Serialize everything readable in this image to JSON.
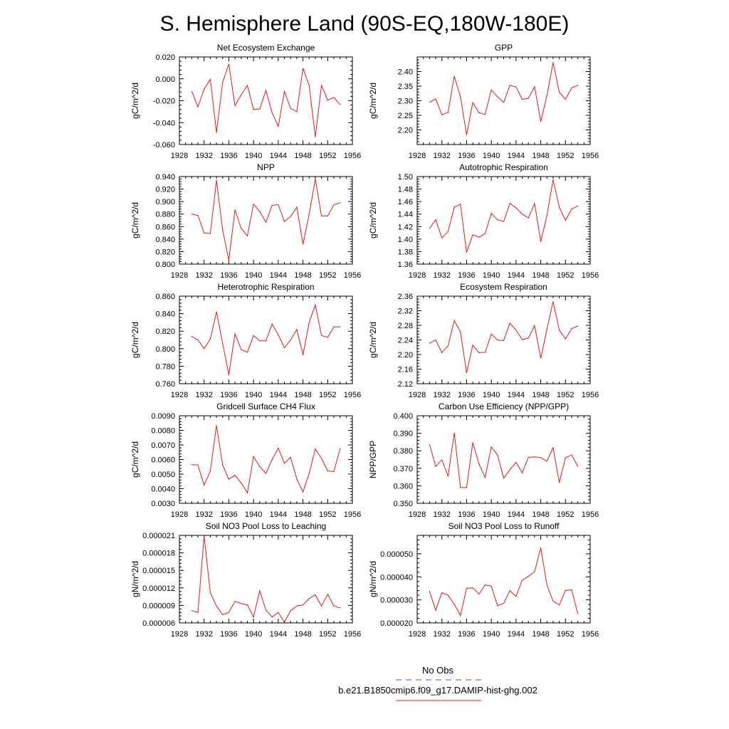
{
  "figure": {
    "title": "S. Hemisphere Land (90S-EQ,180W-180E)",
    "legend": [
      {
        "label": "No Obs",
        "color": "#4b4bd8",
        "dash": true
      },
      {
        "label": "b.e21.B1850cmip6.f09_g17.DAMIP-hist-ghg.002",
        "color": "#e81818",
        "dash": false
      }
    ]
  },
  "chart_data": [
    {
      "type": "line",
      "title": "Net Ecosystem Exchange",
      "ylabel": "gC/m^2/d",
      "xlim": [
        1928,
        1956
      ],
      "xticks": [
        "1928",
        "1932",
        "1936",
        "1940",
        "1944",
        "1948",
        "1952",
        "1956"
      ],
      "ylim": [
        -0.06,
        0.02
      ],
      "yticks": [
        -0.06,
        -0.04,
        -0.02,
        0.0,
        0.02
      ],
      "ytick_labels": [
        "-0.060",
        "-0.040",
        "-0.020",
        "0.000",
        "0.020"
      ],
      "series": [
        {
          "color": "#e81818",
          "x": [
            1930,
            1931,
            1932,
            1933,
            1934,
            1935,
            1936,
            1937,
            1938,
            1939,
            1940,
            1941,
            1942,
            1943,
            1944,
            1945,
            1946,
            1947,
            1948,
            1949,
            1950,
            1951,
            1952,
            1953,
            1954
          ],
          "y": [
            -0.0115,
            -0.0255,
            -0.0095,
            -0.0005,
            -0.049,
            -0.003,
            0.0135,
            -0.0245,
            -0.0145,
            -0.006,
            -0.028,
            -0.0275,
            -0.0105,
            -0.031,
            -0.0435,
            -0.0115,
            -0.027,
            -0.03,
            0.0095,
            -0.006,
            -0.053,
            -0.006,
            -0.0195,
            -0.017,
            -0.0235
          ]
        }
      ]
    },
    {
      "type": "line",
      "title": "GPP",
      "ylabel": "gC/m^2/d",
      "xlim": [
        1928,
        1956
      ],
      "xticks": [
        "1928",
        "1932",
        "1936",
        "1940",
        "1944",
        "1948",
        "1952",
        "1956"
      ],
      "ylim": [
        2.15,
        2.45
      ],
      "yticks": [
        2.2,
        2.25,
        2.3,
        2.35,
        2.4
      ],
      "ytick_labels": [
        "2.20",
        "2.25",
        "2.30",
        "2.35",
        "2.40"
      ],
      "series": [
        {
          "color": "#e81818",
          "x": [
            1930,
            1931,
            1932,
            1933,
            1934,
            1935,
            1936,
            1937,
            1938,
            1939,
            1940,
            1941,
            1942,
            1943,
            1944,
            1945,
            1946,
            1947,
            1948,
            1949,
            1950,
            1951,
            1952,
            1953,
            1954
          ],
          "y": [
            2.295,
            2.306,
            2.252,
            2.26,
            2.384,
            2.314,
            2.183,
            2.294,
            2.259,
            2.253,
            2.337,
            2.314,
            2.294,
            2.353,
            2.347,
            2.305,
            2.308,
            2.348,
            2.229,
            2.318,
            2.431,
            2.329,
            2.305,
            2.344,
            2.353
          ]
        }
      ]
    },
    {
      "type": "line",
      "title": "NPP",
      "ylabel": "gC/m^2/d",
      "xlim": [
        1928,
        1956
      ],
      "xticks": [
        "1928",
        "1932",
        "1936",
        "1940",
        "1944",
        "1948",
        "1952",
        "1956"
      ],
      "ylim": [
        0.8,
        0.94
      ],
      "yticks": [
        0.8,
        0.82,
        0.84,
        0.86,
        0.88,
        0.9,
        0.92,
        0.94
      ],
      "ytick_labels": [
        "0.800",
        "0.820",
        "0.840",
        "0.860",
        "0.880",
        "0.900",
        "0.920",
        "0.940"
      ],
      "series": [
        {
          "color": "#e81818",
          "x": [
            1930,
            1931,
            1932,
            1933,
            1934,
            1935,
            1936,
            1937,
            1938,
            1939,
            1940,
            1941,
            1942,
            1943,
            1944,
            1945,
            1946,
            1947,
            1948,
            1949,
            1950,
            1951,
            1952,
            1953,
            1954
          ],
          "y": [
            0.88,
            0.878,
            0.85,
            0.849,
            0.934,
            0.854,
            0.806,
            0.887,
            0.857,
            0.845,
            0.896,
            0.884,
            0.867,
            0.894,
            0.895,
            0.868,
            0.876,
            0.891,
            0.832,
            0.88,
            0.936,
            0.877,
            0.877,
            0.895,
            0.898
          ]
        }
      ]
    },
    {
      "type": "line",
      "title": "Autotrophic Respiration",
      "ylabel": "gC/m^2/d",
      "xlim": [
        1928,
        1956
      ],
      "xticks": [
        "1928",
        "1932",
        "1936",
        "1940",
        "1944",
        "1948",
        "1952",
        "1956"
      ],
      "ylim": [
        1.36,
        1.5
      ],
      "yticks": [
        1.36,
        1.38,
        1.4,
        1.42,
        1.44,
        1.46,
        1.48,
        1.5
      ],
      "ytick_labels": [
        "1.36",
        "1.38",
        "1.40",
        "1.42",
        "1.44",
        "1.46",
        "1.48",
        "1.50"
      ],
      "series": [
        {
          "color": "#e81818",
          "x": [
            1930,
            1931,
            1932,
            1933,
            1934,
            1935,
            1936,
            1937,
            1938,
            1939,
            1940,
            1941,
            1942,
            1943,
            1944,
            1945,
            1946,
            1947,
            1948,
            1949,
            1950,
            1951,
            1952,
            1953,
            1954
          ],
          "y": [
            1.417,
            1.431,
            1.402,
            1.412,
            1.451,
            1.456,
            1.379,
            1.407,
            1.403,
            1.409,
            1.441,
            1.431,
            1.428,
            1.457,
            1.45,
            1.44,
            1.434,
            1.457,
            1.396,
            1.438,
            1.495,
            1.451,
            1.43,
            1.448,
            1.453
          ]
        }
      ]
    },
    {
      "type": "line",
      "title": "Heterotrophic Respiration",
      "ylabel": "gC/m^2/d",
      "xlim": [
        1928,
        1956
      ],
      "xticks": [
        "1928",
        "1932",
        "1936",
        "1940",
        "1944",
        "1948",
        "1952",
        "1956"
      ],
      "ylim": [
        0.76,
        0.86
      ],
      "yticks": [
        0.76,
        0.78,
        0.8,
        0.82,
        0.84,
        0.86
      ],
      "ytick_labels": [
        "0.760",
        "0.780",
        "0.800",
        "0.820",
        "0.840",
        "0.860"
      ],
      "series": [
        {
          "color": "#e81818",
          "x": [
            1930,
            1931,
            1932,
            1933,
            1934,
            1935,
            1936,
            1937,
            1938,
            1939,
            1940,
            1941,
            1942,
            1943,
            1944,
            1945,
            1946,
            1947,
            1948,
            1949,
            1950,
            1951,
            1952,
            1953,
            1954
          ],
          "y": [
            0.814,
            0.81,
            0.8,
            0.811,
            0.842,
            0.806,
            0.77,
            0.817,
            0.799,
            0.796,
            0.815,
            0.809,
            0.809,
            0.828,
            0.816,
            0.801,
            0.81,
            0.822,
            0.793,
            0.83,
            0.85,
            0.815,
            0.813,
            0.825,
            0.825
          ]
        }
      ]
    },
    {
      "type": "line",
      "title": "Ecosystem Respiration",
      "ylabel": "gC/m^2/d",
      "xlim": [
        1928,
        1956
      ],
      "xticks": [
        "1928",
        "1932",
        "1936",
        "1940",
        "1944",
        "1948",
        "1952",
        "1956"
      ],
      "ylim": [
        2.12,
        2.36
      ],
      "yticks": [
        2.12,
        2.16,
        2.2,
        2.24,
        2.28,
        2.32,
        2.36
      ],
      "ytick_labels": [
        "2.12",
        "2.16",
        "2.20",
        "2.24",
        "2.28",
        "2.32",
        "2.36"
      ],
      "series": [
        {
          "color": "#e81818",
          "x": [
            1930,
            1931,
            1932,
            1933,
            1934,
            1935,
            1936,
            1937,
            1938,
            1939,
            1940,
            1941,
            1942,
            1943,
            1944,
            1945,
            1946,
            1947,
            1948,
            1949,
            1950,
            1951,
            1952,
            1953,
            1954
          ],
          "y": [
            2.231,
            2.24,
            2.205,
            2.224,
            2.293,
            2.262,
            2.15,
            2.226,
            2.205,
            2.206,
            2.256,
            2.24,
            2.238,
            2.286,
            2.267,
            2.241,
            2.245,
            2.279,
            2.19,
            2.27,
            2.345,
            2.267,
            2.243,
            2.271,
            2.278
          ]
        }
      ]
    },
    {
      "type": "line",
      "title": "Gridcell Surface CH4 Flux",
      "ylabel": "gC/m^2/d",
      "xlim": [
        1928,
        1956
      ],
      "xticks": [
        "1928",
        "1932",
        "1936",
        "1940",
        "1944",
        "1948",
        "1952",
        "1956"
      ],
      "ylim": [
        0.003,
        0.009
      ],
      "yticks": [
        0.003,
        0.004,
        0.005,
        0.006,
        0.007,
        0.008,
        0.009
      ],
      "ytick_labels": [
        "0.0030",
        "0.0040",
        "0.0050",
        "0.0060",
        "0.0070",
        "0.0080",
        "0.0090"
      ],
      "series": [
        {
          "color": "#e81818",
          "x": [
            1930,
            1931,
            1932,
            1933,
            1934,
            1935,
            1936,
            1937,
            1938,
            1939,
            1940,
            1941,
            1942,
            1943,
            1944,
            1945,
            1946,
            1947,
            1948,
            1949,
            1950,
            1951,
            1952,
            1953,
            1954
          ],
          "y": [
            0.00565,
            0.00563,
            0.00425,
            0.0052,
            0.00833,
            0.00562,
            0.00465,
            0.00492,
            0.0044,
            0.00372,
            0.0062,
            0.00552,
            0.00505,
            0.006,
            0.00678,
            0.00575,
            0.00615,
            0.00467,
            0.00378,
            0.00505,
            0.00673,
            0.00608,
            0.00522,
            0.00517,
            0.00673
          ]
        }
      ]
    },
    {
      "type": "line",
      "title": "Carbon Use Efficiency (NPP/GPP)",
      "ylabel": "NPP/GPP",
      "xlim": [
        1928,
        1956
      ],
      "xticks": [
        "1928",
        "1932",
        "1936",
        "1940",
        "1944",
        "1948",
        "1952",
        "1956"
      ],
      "ylim": [
        0.35,
        0.4
      ],
      "yticks": [
        0.35,
        0.36,
        0.37,
        0.38,
        0.39,
        0.4
      ],
      "ytick_labels": [
        "0.350",
        "0.360",
        "0.370",
        "0.380",
        "0.390",
        "0.400"
      ],
      "series": [
        {
          "color": "#e81818",
          "x": [
            1930,
            1931,
            1932,
            1933,
            1934,
            1935,
            1936,
            1937,
            1938,
            1939,
            1940,
            1941,
            1942,
            1943,
            1944,
            1945,
            1946,
            1947,
            1948,
            1949,
            1950,
            1951,
            1952,
            1953,
            1954
          ],
          "y": [
            0.3836,
            0.371,
            0.3748,
            0.3655,
            0.3902,
            0.3591,
            0.359,
            0.3847,
            0.3726,
            0.3647,
            0.3822,
            0.3776,
            0.3644,
            0.3692,
            0.3734,
            0.3674,
            0.3762,
            0.3765,
            0.3761,
            0.374,
            0.3818,
            0.3619,
            0.376,
            0.3776,
            0.3712
          ]
        }
      ]
    },
    {
      "type": "line",
      "title": "Soil NO3 Pool Loss to Leaching",
      "ylabel": "gN/m^2/d",
      "xlim": [
        1928,
        1956
      ],
      "xticks": [
        "1928",
        "1932",
        "1936",
        "1940",
        "1944",
        "1948",
        "1952",
        "1956"
      ],
      "ylim": [
        6e-06,
        2.1e-05
      ],
      "yticks": [
        6e-06,
        9e-06,
        1.2e-05,
        1.5e-05,
        1.8e-05,
        2.1e-05
      ],
      "ytick_labels": [
        "0.000006",
        "0.000009",
        "0.000012",
        "0.000015",
        "0.000018",
        "0.000021"
      ],
      "series": [
        {
          "color": "#e81818",
          "x": [
            1930,
            1931,
            1932,
            1933,
            1934,
            1935,
            1936,
            1937,
            1938,
            1939,
            1940,
            1941,
            1942,
            1943,
            1944,
            1945,
            1946,
            1947,
            1948,
            1949,
            1950,
            1951,
            1952,
            1953,
            1954
          ],
          "y": [
            8.1e-06,
            7.8e-06,
            2.09e-05,
            1.12e-05,
            8.9e-06,
            7.4e-06,
            7.8e-06,
            9.7e-06,
            9.3e-06,
            9.1e-06,
            7e-06,
            1.15e-05,
            8.2e-06,
            7e-06,
            7.8e-06,
            6.1e-06,
            8.1e-06,
            8.9e-06,
            9.1e-06,
            1.02e-05,
            1.08e-05,
            8.9e-06,
            1.09e-05,
            8.9e-06,
            8.6e-06
          ]
        }
      ]
    },
    {
      "type": "line",
      "title": "Soil NO3 Pool Loss to Runoff",
      "ylabel": "gN/m^2/d",
      "xlim": [
        1928,
        1956
      ],
      "xticks": [
        "1928",
        "1932",
        "1936",
        "1940",
        "1944",
        "1948",
        "1952",
        "1956"
      ],
      "ylim": [
        2e-05,
        5.8e-05
      ],
      "yticks": [
        2e-05,
        3e-05,
        4e-05,
        5e-05
      ],
      "ytick_labels": [
        "0.000020",
        "0.000030",
        "0.000040",
        "0.000050"
      ],
      "series": [
        {
          "color": "#e81818",
          "x": [
            1930,
            1931,
            1932,
            1933,
            1934,
            1935,
            1936,
            1937,
            1938,
            1939,
            1940,
            1941,
            1942,
            1943,
            1944,
            1945,
            1946,
            1947,
            1948,
            1949,
            1950,
            1951,
            1952,
            1953,
            1954
          ],
          "y": [
            3.37e-05,
            2.55e-05,
            3.31e-05,
            3.2e-05,
            2.81e-05,
            2.32e-05,
            3.5e-05,
            3.52e-05,
            3.25e-05,
            3.65e-05,
            3.6e-05,
            2.75e-05,
            2.85e-05,
            3.4e-05,
            3.15e-05,
            3.86e-05,
            4.02e-05,
            4.22e-05,
            5.26e-05,
            3.64e-05,
            2.95e-05,
            2.78e-05,
            3.41e-05,
            3.44e-05,
            2.4e-05
          ]
        }
      ]
    }
  ]
}
